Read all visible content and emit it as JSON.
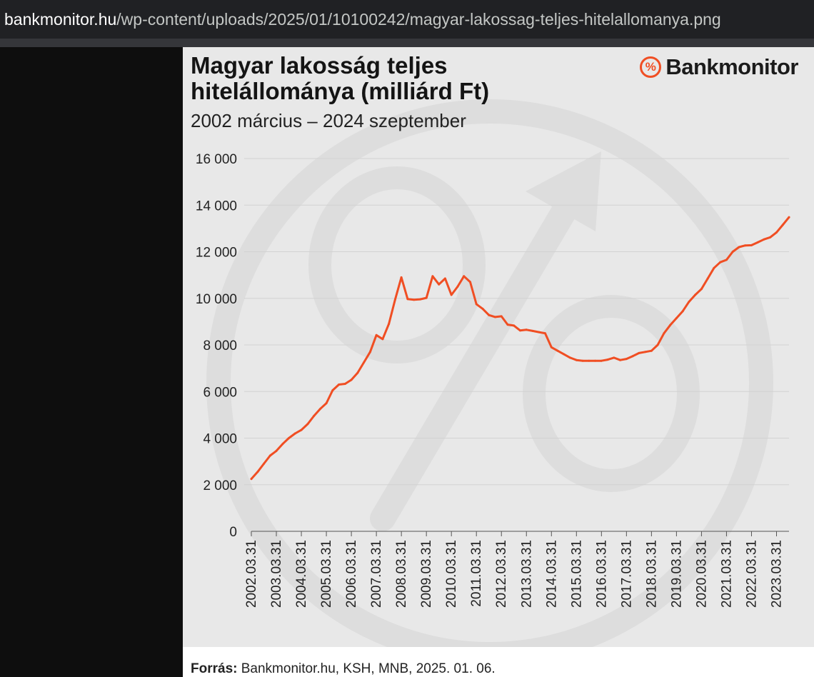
{
  "browser": {
    "url_host": "bankmonitor.hu",
    "url_path": "/wp-content/uploads/2025/01/10100242/magyar-lakossag-teljes-hitelallomanya.png"
  },
  "brand": {
    "logo_text": "Bankmonitor",
    "logo_symbol": "%",
    "accent_color": "#f04e23"
  },
  "chart_data": {
    "type": "line",
    "title": "Magyar lakosság teljes hitelállománya (milliárd Ft)",
    "subtitle": "2002 március – 2024 szeptember",
    "xlabel": "",
    "ylabel": "",
    "ylim": [
      0,
      16000
    ],
    "yticks": [
      0,
      2000,
      4000,
      6000,
      8000,
      10000,
      12000,
      14000,
      16000
    ],
    "ytick_labels": [
      "0",
      "2 000",
      "4 000",
      "6 000",
      "8 000",
      "10 000",
      "12 000",
      "14 000",
      "16 000"
    ],
    "xtick_labels": [
      "2002.03.31",
      "2003.03.31",
      "2004.03.31",
      "2005.03.31",
      "2006.03.31",
      "2007.03.31",
      "2008.03.31",
      "2009.03.31",
      "2010.03.31",
      "2011.03.31",
      "2012.03.31",
      "2013.03.31",
      "2014.03.31",
      "2015.03.31",
      "2016.03.31",
      "2017.03.31",
      "2018.03.31",
      "2019.03.31",
      "2020.03.31",
      "2021.03.31",
      "2022.03.31",
      "2023.03.31"
    ],
    "grid": true,
    "line_color": "#f04e23",
    "series": [
      {
        "x": [
          2002.0,
          2002.25,
          2002.5,
          2002.75,
          2003.0,
          2003.25,
          2003.5,
          2003.75,
          2004.0,
          2004.25,
          2004.5,
          2004.75,
          2005.0,
          2005.25,
          2005.5,
          2005.75,
          2006.0,
          2006.25,
          2006.5,
          2006.75,
          2007.0,
          2007.25,
          2007.5,
          2007.75,
          2008.0,
          2008.25,
          2008.5,
          2008.75,
          2009.0,
          2009.25,
          2009.5,
          2009.75,
          2010.0,
          2010.25,
          2010.5,
          2010.75,
          2011.0,
          2011.25,
          2011.5,
          2011.75,
          2012.0,
          2012.25,
          2012.5,
          2012.75,
          2013.0,
          2013.25,
          2013.5,
          2013.75,
          2014.0,
          2014.25,
          2014.5,
          2014.75,
          2015.0,
          2015.25,
          2015.5,
          2015.75,
          2016.0,
          2016.25,
          2016.5,
          2016.75,
          2017.0,
          2017.25,
          2017.5,
          2017.75,
          2018.0,
          2018.25,
          2018.5,
          2018.75,
          2019.0,
          2019.25,
          2019.5,
          2019.75,
          2020.0,
          2020.25,
          2020.5,
          2020.75,
          2021.0,
          2021.25,
          2021.5,
          2021.75,
          2022.0,
          2022.25,
          2022.5,
          2022.75,
          2023.0,
          2023.25,
          2023.5
        ],
        "y": [
          2250,
          2550,
          2900,
          3250,
          3450,
          3750,
          4000,
          4200,
          4350,
          4600,
          4950,
          5250,
          5500,
          6050,
          6300,
          6330,
          6500,
          6800,
          7250,
          7700,
          8420,
          8250,
          8900,
          9950,
          10900,
          9970,
          9940,
          9960,
          10020,
          10950,
          10600,
          10850,
          10150,
          10500,
          10950,
          10700,
          9750,
          9550,
          9280,
          9200,
          9230,
          8870,
          8830,
          8620,
          8650,
          8600,
          8550,
          8500,
          7900,
          7750,
          7600,
          7450,
          7350,
          7320,
          7320,
          7320,
          7320,
          7370,
          7450,
          7350,
          7400,
          7520,
          7650,
          7700,
          7750,
          8000,
          8500,
          8850,
          9150,
          9450,
          9850,
          10150,
          10400,
          10850,
          11300,
          11550,
          11650,
          12000,
          12200,
          12270,
          12280,
          12400,
          12530,
          12620,
          12830,
          13150,
          13480
        ]
      }
    ]
  },
  "footer": {
    "source_label": "Forrás:",
    "source_text": " Bankmonitor.hu, KSH, MNB, 2025. 01. 06."
  }
}
